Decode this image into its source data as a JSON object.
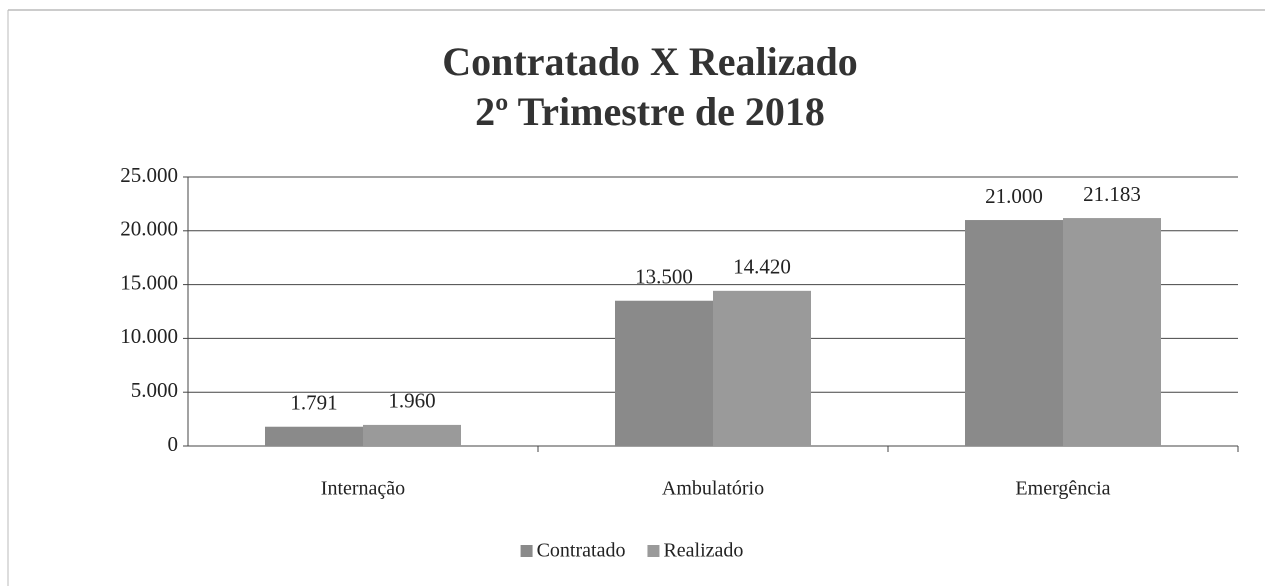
{
  "chart_data": {
    "type": "bar",
    "title": "Contratado X Realizado",
    "subtitle": "2º Trimestre de 2018",
    "categories": [
      "Internação",
      "Ambulatório",
      "Emergência"
    ],
    "series": [
      {
        "name": "Contratado",
        "color": "#8a8a8a",
        "values": [
          1791,
          13500,
          21000
        ],
        "value_labels": [
          "1.791",
          "13.500",
          "21.000"
        ]
      },
      {
        "name": "Realizado",
        "color": "#9a9a9a",
        "values": [
          1960,
          14420,
          21183
        ],
        "value_labels": [
          "1.960",
          "14.420",
          "21.183"
        ]
      }
    ],
    "ylim": [
      0,
      25000
    ],
    "yticks": [
      0,
      {
        "value": 5000,
        "label": "5.000"
      },
      {
        "value": 10000,
        "label": "10.000"
      },
      {
        "value": 15000,
        "label": "15.000"
      },
      {
        "value": 20000,
        "label": "20.000"
      },
      {
        "value": 25000,
        "label": "25.000"
      }
    ],
    "grid": true,
    "legend": "bottom"
  }
}
